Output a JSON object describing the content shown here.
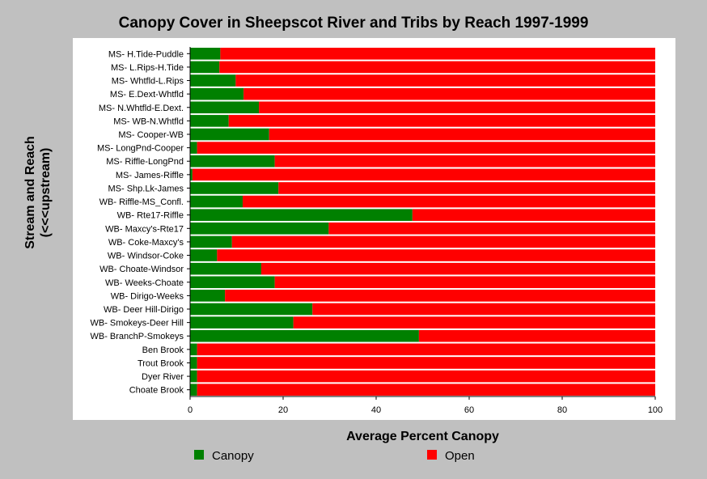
{
  "chart_data": {
    "type": "bar",
    "orientation": "horizontal",
    "stacked": true,
    "title": "Canopy Cover in Sheepscot River and Tribs by Reach 1997-1999",
    "xlabel": "Average Percent Canopy",
    "ylabel": [
      "Stream and Reach",
      "(<<<upstream)"
    ],
    "xlim": [
      0,
      100
    ],
    "xticks": [
      0,
      20,
      40,
      60,
      80,
      100
    ],
    "legend_position": "bottom",
    "categories": [
      "MS- H.Tide-Puddle",
      "MS- L.Rips-H.Tide",
      "MS- Whtfld-L.Rips",
      "MS- E.Dext-Whtfld",
      "MS- N.Whtfld-E.Dext.",
      "MS- WB-N.Whtfld",
      "MS- Cooper-WB",
      "MS- LongPnd-Cooper",
      "MS- Riffle-LongPnd",
      "MS- James-Riffle",
      "MS- Shp.Lk-James",
      "WB- Riffle-MS_Confl.",
      "WB- Rte17-Riffle",
      "WB- Maxcy's-Rte17",
      "WB- Coke-Maxcy's",
      "WB- Windsor-Coke",
      "WB- Choate-Windsor",
      "WB- Weeks-Choate",
      "WB- Dirigo-Weeks",
      "WB- Deer Hill-Dirigo",
      "WB- Smokeys-Deer Hill",
      "WB- BranchP-Smokeys",
      "Ben Brook",
      "Trout Brook",
      "Dyer River",
      "Choate Brook"
    ],
    "series": [
      {
        "name": "Canopy",
        "color": "#008000",
        "values": [
          6.5,
          6.3,
          9.8,
          11.5,
          14.8,
          8.3,
          17.0,
          1.5,
          18.2,
          0.5,
          19.0,
          11.3,
          47.8,
          29.8,
          9.0,
          5.8,
          15.3,
          18.2,
          7.5,
          26.3,
          22.2,
          49.2,
          1.5,
          1.5,
          1.5,
          1.5
        ]
      },
      {
        "name": "Open",
        "color": "#ff0000",
        "values": [
          93.5,
          93.7,
          90.2,
          88.5,
          85.2,
          91.7,
          83.0,
          98.5,
          81.8,
          99.5,
          81.0,
          88.7,
          52.2,
          70.2,
          91.0,
          94.2,
          84.7,
          81.8,
          92.5,
          73.7,
          77.8,
          50.8,
          98.5,
          98.5,
          98.5,
          98.5
        ]
      }
    ]
  }
}
